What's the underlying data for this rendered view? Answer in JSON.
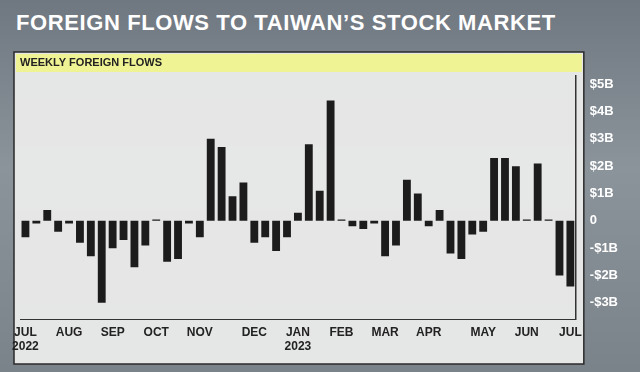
{
  "chart_data": {
    "type": "bar",
    "title": "FOREIGN FLOWS TO TAIWAN’S STOCK MARKET",
    "subtitle": "WEEKLY FOREIGN FLOWS",
    "categories": [
      [
        "JUL",
        "2022"
      ],
      null,
      null,
      null,
      "AUG",
      null,
      null,
      null,
      "SEP",
      null,
      null,
      null,
      "OCT",
      null,
      null,
      null,
      "NOV",
      null,
      null,
      null,
      null,
      "DEC",
      null,
      null,
      null,
      [
        "JAN",
        "2023"
      ],
      null,
      null,
      null,
      "FEB",
      null,
      null,
      null,
      "MAR",
      null,
      null,
      null,
      "APR",
      null,
      null,
      null,
      null,
      "MAY",
      null,
      null,
      null,
      "JUN",
      null,
      null,
      null,
      "JUL"
    ],
    "values": [
      -0.6,
      -0.1,
      0.4,
      -0.4,
      -0.1,
      -0.8,
      -1.3,
      -3.0,
      -1.0,
      -0.7,
      -1.7,
      -0.9,
      0.05,
      -1.5,
      -1.4,
      -0.1,
      -0.6,
      3.0,
      2.7,
      0.9,
      1.4,
      -0.8,
      -0.6,
      -1.1,
      -0.6,
      0.3,
      2.8,
      1.1,
      4.4,
      0.05,
      -0.2,
      -0.3,
      -0.1,
      -1.3,
      -0.9,
      1.5,
      1.0,
      -0.2,
      0.4,
      -1.2,
      -1.4,
      -0.5,
      -0.4,
      2.3,
      2.3,
      2.0,
      0.05,
      2.1,
      0.05,
      -2.0,
      -2.4
    ],
    "color": "#1c1c1c",
    "ylim": [
      -3.6,
      5.3
    ],
    "yticks": [
      {
        "value": -3,
        "label": "-$3B"
      },
      {
        "value": -2,
        "label": "-$2B"
      },
      {
        "value": -1,
        "label": "-$1B"
      },
      0,
      {
        "value": 1,
        "label": "$1B"
      },
      {
        "value": 2,
        "label": "$2B"
      },
      {
        "value": 3,
        "label": "$3B"
      },
      {
        "value": 4,
        "label": "$4B"
      },
      {
        "value": 5,
        "label": "$5B"
      }
    ],
    "grid": false
  }
}
